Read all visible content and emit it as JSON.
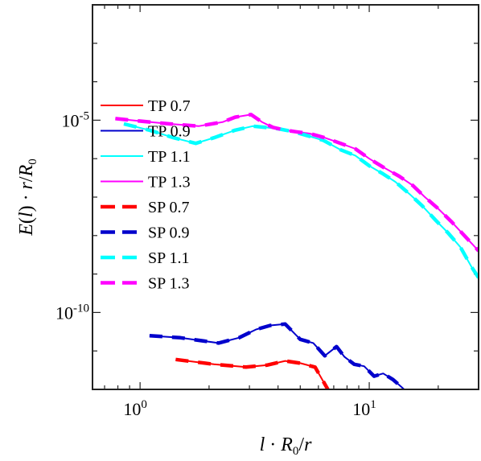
{
  "chart_data": {
    "type": "line",
    "title": "",
    "xlabel": "l · R0 / r",
    "ylabel": "E(l) · r / R0",
    "xscale": "log",
    "yscale": "log",
    "xlim": [
      0.62,
      30
    ],
    "ylim": [
      1e-12,
      0.01
    ],
    "x_ticks": [
      {
        "value": 1,
        "base": "10",
        "exp": "0"
      },
      {
        "value": 10,
        "base": "10",
        "exp": "1"
      }
    ],
    "y_ticks": [
      {
        "value": 1e-05,
        "base": "10",
        "exp": "-5"
      },
      {
        "value": 1e-10,
        "base": "10",
        "exp": "-10"
      }
    ],
    "legend_position": "left",
    "colors": {
      "TP 0.7": "#ff0000",
      "TP 0.9": "#0000cc",
      "TP 1.1": "#00ffff",
      "TP 1.3": "#ff00ff"
    },
    "series": [
      {
        "name": "TP 0.7",
        "color": "#ff0000",
        "dash": false,
        "x": [
          1.43,
          2.1,
          2.9,
          3.6,
          4.3,
          5.0,
          5.8,
          6.6
        ],
        "y": [
          6e-12,
          4.5e-12,
          3.8e-12,
          4.3e-12,
          5.5e-12,
          4.8e-12,
          3.8e-12,
          1e-12
        ]
      },
      {
        "name": "TP 0.9",
        "color": "#0000cc",
        "dash": false,
        "x": [
          1.1,
          1.5,
          2.2,
          2.7,
          3.2,
          3.7,
          4.3,
          5.0,
          5.7,
          6.4,
          7.2,
          7.8,
          8.6,
          9.5,
          10.5,
          11.5,
          12.7,
          14.2
        ],
        "y": [
          2.5e-11,
          2.2e-11,
          1.6e-11,
          2.2e-11,
          3.6e-11,
          4.6e-11,
          5e-11,
          2e-11,
          1.6e-11,
          7.5e-12,
          1.3e-11,
          7e-12,
          4.5e-12,
          4e-12,
          2.2e-12,
          2.6e-12,
          1.8e-12,
          1e-12
        ]
      },
      {
        "name": "TP 1.1",
        "color": "#00ffff",
        "dash": false,
        "x": [
          0.85,
          1.1,
          1.4,
          1.75,
          2.1,
          2.6,
          3.1,
          3.5,
          4.0,
          4.7,
          5.5,
          6.3,
          7.5,
          8.7,
          10.0,
          11.5,
          13.0,
          15.0,
          17.0,
          19.5,
          22.0,
          25.0,
          28.0,
          30.0
        ],
        "y": [
          8e-06,
          5.5e-06,
          3.5e-06,
          2.5e-06,
          3.5e-06,
          5.5e-06,
          7e-06,
          6.5e-06,
          6e-06,
          5e-06,
          3.8e-06,
          3e-06,
          1.7e-06,
          1.2e-06,
          6.5e-07,
          4e-07,
          2.5e-07,
          1.2e-07,
          6e-08,
          2.5e-08,
          1.2e-08,
          5e-09,
          1.5e-09,
          8e-10
        ]
      },
      {
        "name": "TP 1.3",
        "color": "#ff00ff",
        "dash": false,
        "x": [
          0.78,
          1.0,
          1.35,
          1.8,
          2.3,
          2.6,
          3.05,
          3.4,
          3.8,
          4.3,
          4.8,
          5.5,
          6.4,
          7.5,
          8.7,
          10.0,
          11.5,
          13.5,
          15.5,
          17.5,
          20.0,
          23.0,
          26.0,
          30.0
        ],
        "y": [
          1.1e-05,
          9.5e-06,
          8e-06,
          7e-06,
          9e-06,
          1.2e-05,
          1.4e-05,
          9e-06,
          6.5e-06,
          5.5e-06,
          5e-06,
          4.5e-06,
          3.5e-06,
          2.5e-06,
          1.8e-06,
          1e-06,
          6e-07,
          3.5e-07,
          2e-07,
          1e-07,
          5e-08,
          2.2e-08,
          1e-08,
          4e-09
        ]
      },
      {
        "name": "SP 0.7",
        "color": "#ff0000",
        "dash": true,
        "x": [
          1.43,
          2.1,
          2.9,
          3.6,
          4.3,
          5.0,
          5.8,
          6.6
        ],
        "y": [
          6e-12,
          4.5e-12,
          3.8e-12,
          4.3e-12,
          5.5e-12,
          4.8e-12,
          3.8e-12,
          1e-12
        ]
      },
      {
        "name": "SP 0.9",
        "color": "#0000cc",
        "dash": true,
        "x": [
          1.1,
          1.5,
          2.2,
          2.7,
          3.2,
          3.7,
          4.3,
          5.0,
          5.7,
          6.4,
          7.2,
          7.8,
          8.6,
          9.5,
          10.5,
          11.5,
          12.7,
          14.2
        ],
        "y": [
          2.5e-11,
          2.2e-11,
          1.6e-11,
          2.2e-11,
          3.6e-11,
          4.6e-11,
          5e-11,
          2e-11,
          1.6e-11,
          7.5e-12,
          1.3e-11,
          7e-12,
          4.5e-12,
          4e-12,
          2.2e-12,
          2.6e-12,
          1.8e-12,
          1e-12
        ]
      },
      {
        "name": "SP 1.1",
        "color": "#00ffff",
        "dash": true,
        "x": [
          0.85,
          1.1,
          1.4,
          1.75,
          2.1,
          2.6,
          3.1,
          3.5,
          4.0,
          4.7,
          5.5,
          6.3,
          7.5,
          8.7,
          10.0,
          11.5,
          13.0,
          15.0,
          17.0,
          19.5,
          22.0,
          25.0,
          28.0,
          30.0
        ],
        "y": [
          8e-06,
          5.5e-06,
          3.5e-06,
          2.5e-06,
          3.5e-06,
          5.5e-06,
          7e-06,
          6.5e-06,
          6e-06,
          5e-06,
          3.8e-06,
          3e-06,
          1.7e-06,
          1.2e-06,
          6.5e-07,
          4e-07,
          2.5e-07,
          1.2e-07,
          6e-08,
          2.5e-08,
          1.2e-08,
          5e-09,
          1.5e-09,
          8e-10
        ]
      },
      {
        "name": "SP 1.3",
        "color": "#ff00ff",
        "dash": true,
        "x": [
          0.78,
          1.0,
          1.35,
          1.8,
          2.3,
          2.6,
          3.05,
          3.4,
          3.8,
          4.3,
          4.8,
          5.5,
          6.4,
          7.5,
          8.7,
          10.0,
          11.5,
          13.5,
          15.5,
          17.5,
          20.0,
          23.0,
          26.0,
          30.0
        ],
        "y": [
          1.1e-05,
          9.5e-06,
          8e-06,
          7e-06,
          9e-06,
          1.2e-05,
          1.4e-05,
          9e-06,
          6.5e-06,
          5.5e-06,
          5e-06,
          4.5e-06,
          3.5e-06,
          2.5e-06,
          1.8e-06,
          1e-06,
          6e-07,
          3.5e-07,
          2e-07,
          1e-07,
          5e-08,
          2.2e-08,
          1e-08,
          4e-09
        ]
      }
    ]
  }
}
